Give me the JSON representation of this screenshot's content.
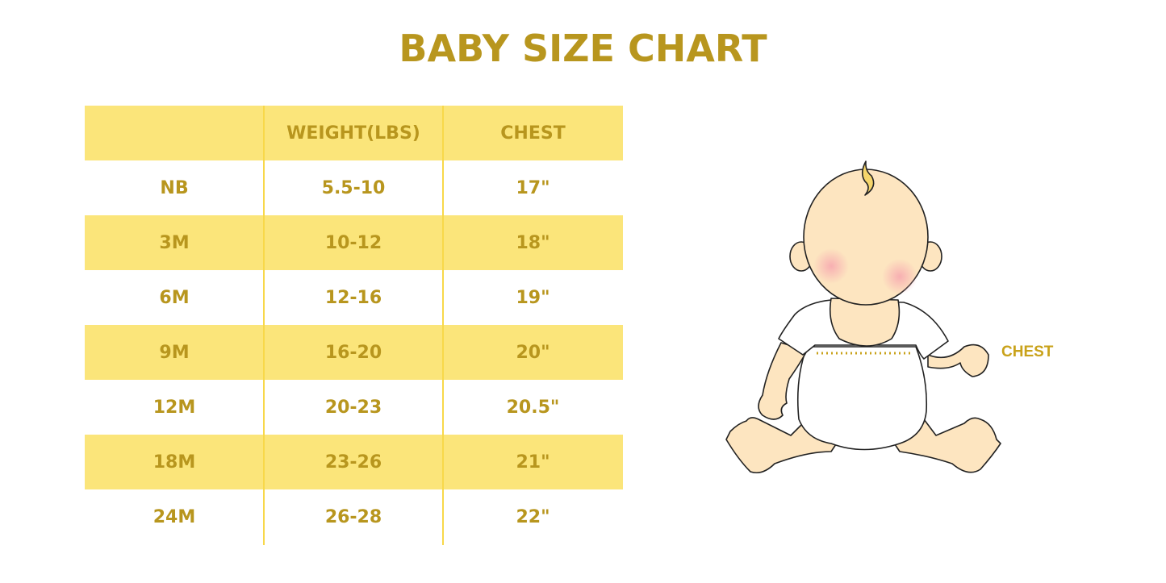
{
  "title": "BABY SIZE CHART",
  "table": {
    "headers": [
      "",
      "WEIGHT(LBS)",
      "CHEST"
    ],
    "rows": [
      [
        "NB",
        "5.5-10",
        "17\""
      ],
      [
        "3M",
        "10-12",
        "18\""
      ],
      [
        "6M",
        "12-16",
        "19\""
      ],
      [
        "9M",
        "16-20",
        "20\""
      ],
      [
        "12M",
        "20-23",
        "20.5\""
      ],
      [
        "18M",
        "23-26",
        "21\""
      ],
      [
        "24M",
        "26-28",
        "22\""
      ]
    ]
  },
  "illustration": {
    "chest_label": "CHEST"
  },
  "colors": {
    "text": "#b8961e",
    "band": "#fbe57a",
    "skin": "#fde5c0"
  }
}
